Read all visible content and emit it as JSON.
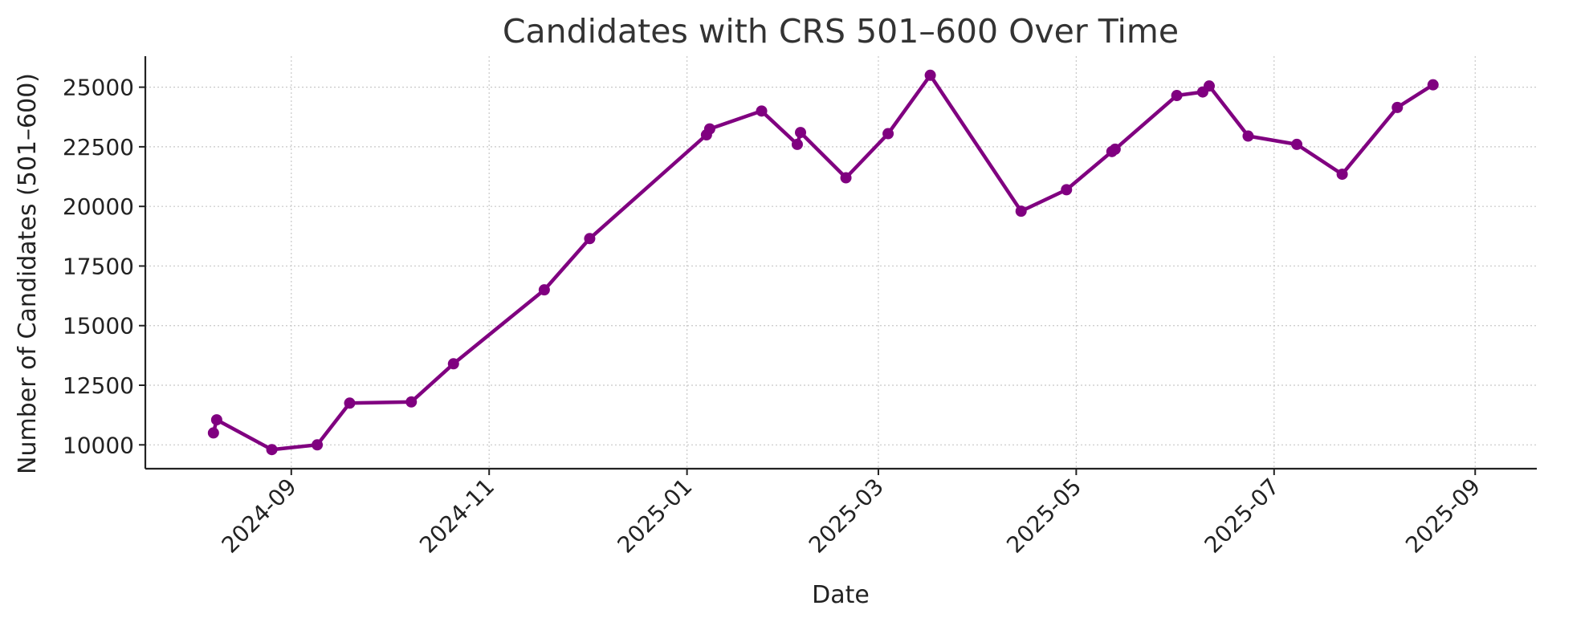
{
  "chart_data": {
    "type": "line",
    "title": "Candidates with CRS 501–600 Over Time",
    "xlabel": "Date",
    "ylabel": "Number of Candidates (501–600)",
    "x_ticks": [
      "2024-09",
      "2024-11",
      "2025-01",
      "2025-03",
      "2025-05",
      "2025-07",
      "2025-09"
    ],
    "y_ticks": [
      10000,
      12500,
      15000,
      17500,
      20000,
      22500,
      25000
    ],
    "xlim": [
      "2024-07-18",
      "2025-09-20"
    ],
    "ylim": [
      9000,
      26300
    ],
    "grid": true,
    "color": "#800080",
    "series": [
      {
        "x": [
          "2024-08-08",
          "2024-08-09",
          "2024-08-26",
          "2024-09-09",
          "2024-09-19",
          "2024-10-08",
          "2024-10-21",
          "2024-11-18",
          "2024-12-02",
          "2025-01-07",
          "2025-01-08",
          "2025-01-24",
          "2025-02-04",
          "2025-02-05",
          "2025-02-19",
          "2025-03-04",
          "2025-03-17",
          "2025-04-14",
          "2025-04-28",
          "2025-05-12",
          "2025-05-13",
          "2025-06-01",
          "2025-06-09",
          "2025-06-11",
          "2025-06-23",
          "2025-07-08",
          "2025-07-22",
          "2025-08-08",
          "2025-08-19"
        ],
        "y": [
          10500,
          11050,
          9800,
          10000,
          11750,
          11800,
          13400,
          16500,
          18650,
          23000,
          23250,
          24000,
          22600,
          23100,
          21200,
          23050,
          25500,
          19800,
          20700,
          22300,
          22400,
          24650,
          24800,
          25050,
          22950,
          22600,
          21350,
          24150,
          25100
        ]
      }
    ]
  }
}
